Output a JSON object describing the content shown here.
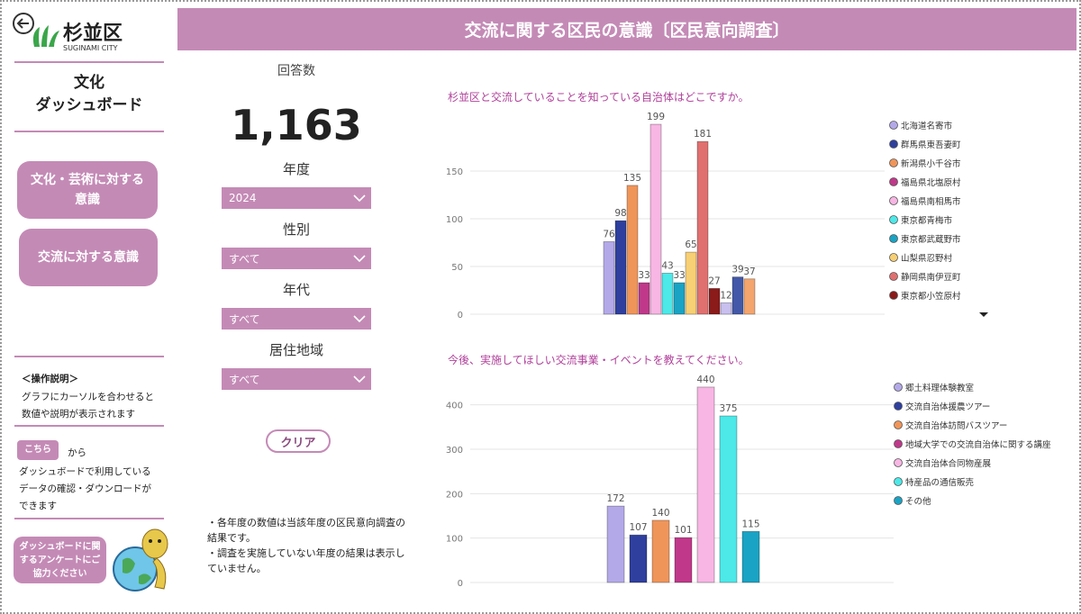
{
  "logo": {
    "name": "杉並区",
    "sub": "SUGINAMI CITY"
  },
  "header": {
    "title": "交流に関する区民の意識〔区民意向調査〕"
  },
  "sidebar": {
    "title_lines": [
      "文化",
      "ダッシュボード"
    ],
    "nav": [
      "文化・芸術に対する意識",
      "交流に対する意識"
    ],
    "help_title": "＜操作説明＞",
    "help_text": "グラフにカーソルを合わせると数値や説明が表示されます",
    "link_button": "こちら",
    "link_suffix": "から",
    "link_text": "ダッシュボードで利用しているデータの確認・ダウンロードができます",
    "survey_button": "ダッシュボードに関するアンケートにご協力ください"
  },
  "kpi": {
    "label": "回答数",
    "value": "1,163"
  },
  "filters": [
    {
      "label": "年度",
      "value": "2024"
    },
    {
      "label": "性別",
      "value": "すべて"
    },
    {
      "label": "年代",
      "value": "すべて"
    },
    {
      "label": "居住地域",
      "value": "すべて"
    }
  ],
  "clear_button": "クリア",
  "notes": [
    "・各年度の数値は当該年度の区民意向調査の結果です。",
    "・調査を実施していない年度の結果は表示していません。"
  ],
  "chart_data": [
    {
      "type": "bar",
      "title": "杉並区と交流していることを知っている自治体はどこですか。",
      "categories": [
        "北海道名寄市",
        "群馬県東吾妻町",
        "新潟県小千谷市",
        "福島県北塩原村",
        "福島県南相馬市",
        "東京都青梅市",
        "東京都武蔵野市",
        "山梨県忍野村",
        "静岡県南伊豆町",
        "東京都小笠原村",
        null,
        null,
        null
      ],
      "values": [
        76,
        98,
        135,
        33,
        199,
        43,
        33,
        65,
        181,
        27,
        12,
        39,
        37
      ],
      "colors": [
        "#b4a9e8",
        "#2e3f9e",
        "#f0955a",
        "#c0388a",
        "#f7b6e3",
        "#4de8e8",
        "#1aa3c4",
        "#f7cf74",
        "#e07070",
        "#8b1a1a",
        "#c9c0f0",
        "#4358a8",
        "#f4a56e"
      ],
      "ylim": [
        0,
        200
      ],
      "yticks": [
        0,
        50,
        100,
        150
      ],
      "grid": true
    },
    {
      "type": "bar",
      "title": "今後、実施してほしい交流事業・イベントを教えてください。",
      "categories": [
        "郷土料理体験教室",
        "交流自治体援農ツアー",
        "交流自治体訪問バスツアー",
        "地域大学での交流自治体に関する講座",
        "交流自治体合同物産展",
        "特産品の通信販売",
        "その他"
      ],
      "values": [
        172,
        107,
        140,
        101,
        440,
        375,
        115
      ],
      "colors": [
        "#b4a9e8",
        "#2e3f9e",
        "#f0955a",
        "#c0388a",
        "#f7b6e3",
        "#4de8e8",
        "#1aa3c4"
      ],
      "ylim": [
        0,
        450
      ],
      "yticks": [
        0,
        100,
        200,
        300,
        400
      ],
      "grid": true
    }
  ]
}
